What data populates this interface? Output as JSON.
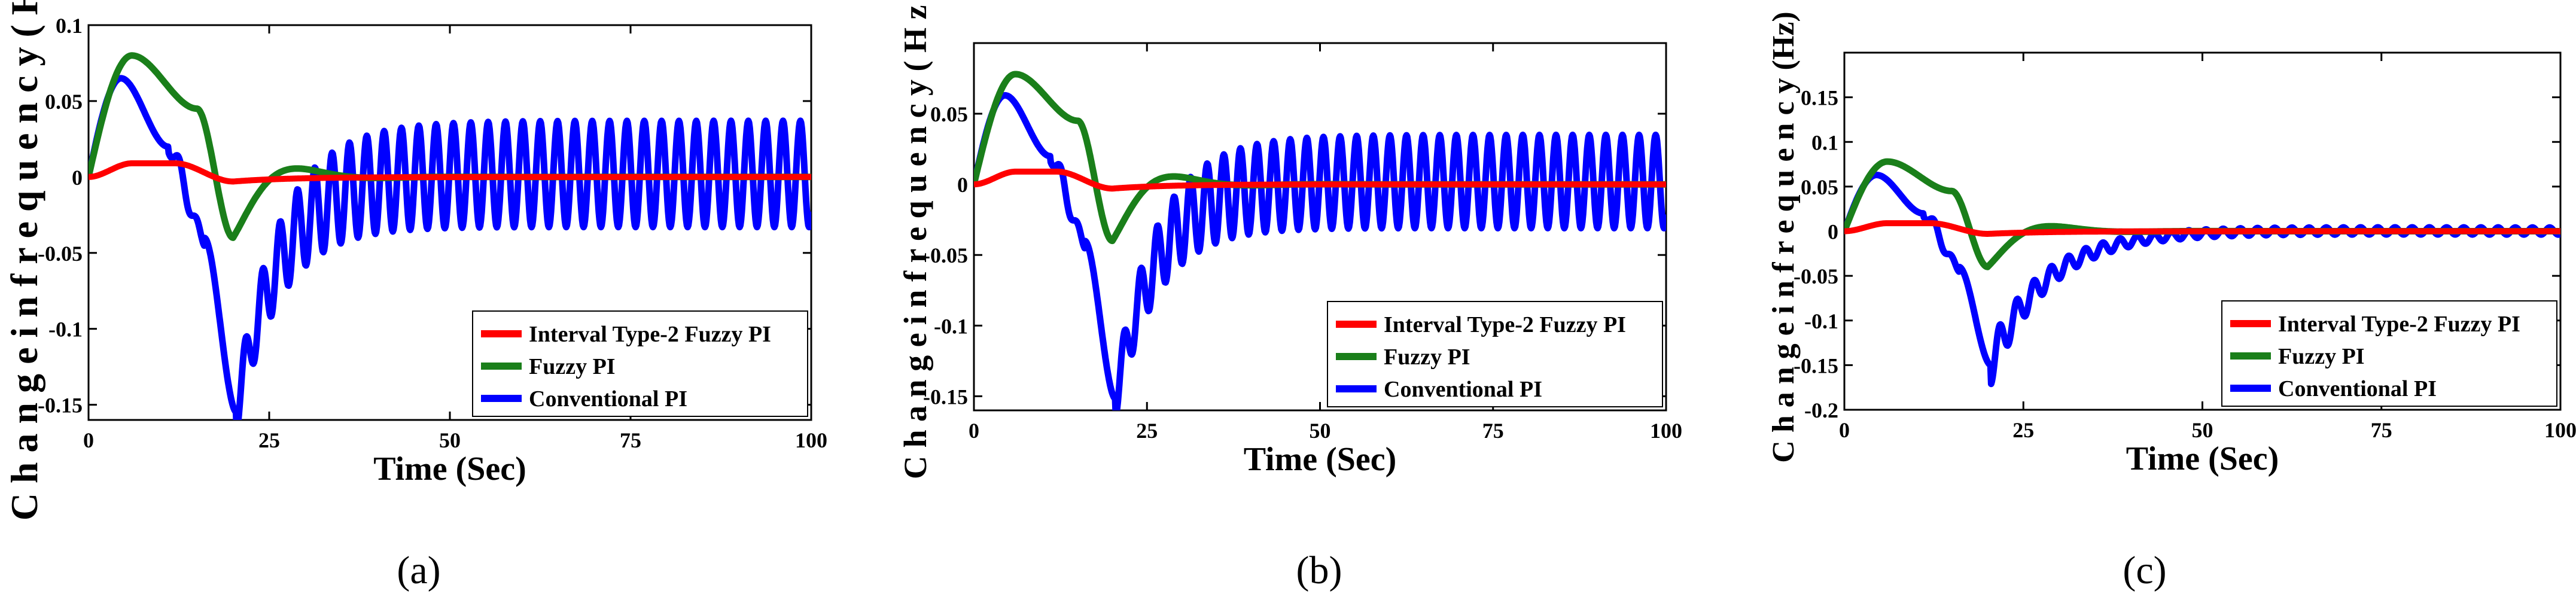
{
  "chart_data": [
    {
      "type": "line",
      "caption": "(a)",
      "xlabel": "Time (Sec)",
      "ylabel": "Change in frequency (Hz)",
      "ylabel_display": "C h a n g e   i n   f r e q u e n c y   ( H z )",
      "xlim": [
        0,
        100
      ],
      "ylim": [
        -0.16,
        0.1
      ],
      "xticks": [
        0,
        25,
        50,
        75,
        100
      ],
      "xtick_labels": [
        "0",
        "25",
        "50",
        "75",
        "100"
      ],
      "yticks": [
        0.1,
        0.05,
        0,
        -0.05,
        -0.1,
        -0.15
      ],
      "ytick_labels": [
        "0.1",
        "0.05",
        "0",
        "-0.05",
        "-0.1",
        "-0.15"
      ],
      "grid": false,
      "legend": "bottom-right",
      "settling": "oscillating",
      "osc_amplitude": 0.035,
      "fuzzy_peak": 0.08,
      "conv_peak": 0.065,
      "conv_min": -0.155,
      "series": [
        {
          "name": "Interval Type-2 Fuzzy PI",
          "color": "#ff0000"
        },
        {
          "name": "Fuzzy PI",
          "color": "#1a7f1a"
        },
        {
          "name": "Conventional PI",
          "color": "#0000ff"
        }
      ]
    },
    {
      "type": "line",
      "caption": "(b)",
      "xlabel": "Time (Sec)",
      "ylabel": "Change in frequency (Hz)",
      "ylabel_display": "C h a n g e   i n   f r e q u e n c y   ( H z )",
      "xlim": [
        0,
        100
      ],
      "ylim": [
        -0.16,
        0.1
      ],
      "xticks": [
        0,
        25,
        50,
        75,
        100
      ],
      "xtick_labels": [
        "0",
        "25",
        "50",
        "75",
        "100"
      ],
      "yticks": [
        0.05,
        0,
        -0.05,
        -0.1,
        -0.15
      ],
      "ytick_labels": [
        "0.05",
        "0",
        "-0.05",
        "-0.1",
        "-0.15"
      ],
      "grid": false,
      "legend": "bottom-right",
      "settling": "oscillating",
      "osc_amplitude": 0.033,
      "fuzzy_peak": 0.078,
      "conv_peak": 0.063,
      "conv_min": -0.152,
      "series": [
        {
          "name": "Interval Type-2 Fuzzy PI",
          "color": "#ff0000"
        },
        {
          "name": "Fuzzy PI",
          "color": "#1a7f1a"
        },
        {
          "name": "Conventional PI",
          "color": "#0000ff"
        }
      ]
    },
    {
      "type": "line",
      "caption": "(c)",
      "xlabel": "Time (Sec)",
      "ylabel": "Change in frequency (Hz)",
      "ylabel_display": "C h a n g e   i n   f r e q u e n c y   (Hz)",
      "xlim": [
        0,
        100
      ],
      "ylim": [
        -0.2,
        0.2
      ],
      "xticks": [
        0,
        25,
        50,
        75,
        100
      ],
      "xtick_labels": [
        "0",
        "25",
        "50",
        "75",
        "100"
      ],
      "yticks": [
        0.15,
        0.1,
        0.05,
        0,
        -0.05,
        -0.1,
        -0.15,
        -0.2
      ],
      "ytick_labels": [
        "0.15",
        "0.1",
        "0.05",
        "0",
        "-0.05",
        "-0.1",
        "-0.15",
        "-0.2"
      ],
      "grid": false,
      "legend": "bottom-right",
      "settling": "damped",
      "osc_amplitude": 0.004,
      "fuzzy_peak": 0.078,
      "conv_peak": 0.063,
      "conv_min": -0.15,
      "series": [
        {
          "name": "Interval Type-2 Fuzzy PI",
          "color": "#ff0000"
        },
        {
          "name": "Fuzzy PI",
          "color": "#1a7f1a"
        },
        {
          "name": "Conventional PI",
          "color": "#0000ff"
        }
      ]
    }
  ]
}
